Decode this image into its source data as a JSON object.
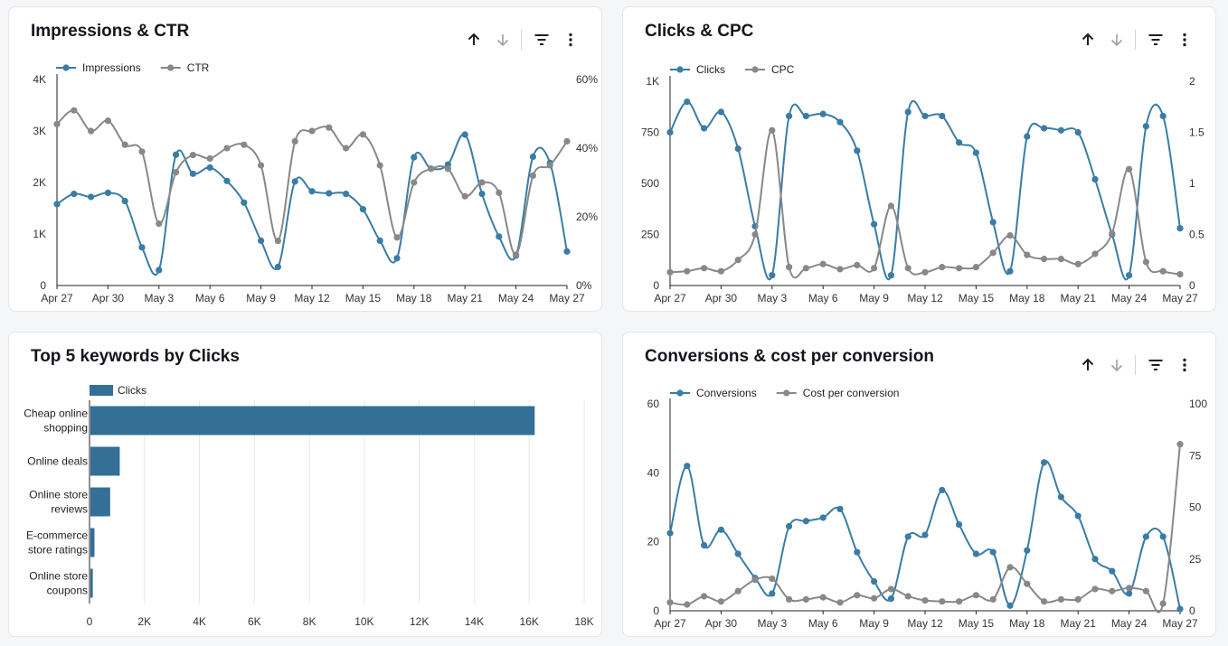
{
  "colors": {
    "blue": "#3a7ca5",
    "gray": "#888888",
    "bar": "#336f96",
    "grid": "#e6e8eb",
    "axis": "#222222"
  },
  "toolbar": {
    "sort_up_icon": "arrow-up-icon",
    "sort_down_icon": "arrow-down-icon",
    "filter_icon": "filter-icon",
    "more_icon": "more-vert-icon"
  },
  "chart_data": [
    {
      "id": "impressions",
      "type": "line",
      "title": "Impressions & CTR",
      "x": [
        "Apr 27",
        "Apr 28",
        "Apr 29",
        "Apr 30",
        "May 1",
        "May 2",
        "May 3",
        "May 4",
        "May 5",
        "May 6",
        "May 7",
        "May 8",
        "May 9",
        "May 10",
        "May 11",
        "May 12",
        "May 13",
        "May 14",
        "May 15",
        "May 16",
        "May 17",
        "May 18",
        "May 19",
        "May 20",
        "May 21",
        "May 22",
        "May 23",
        "May 24",
        "May 25",
        "May 26",
        "May 27"
      ],
      "xticks": [
        "Apr 27",
        "Apr 30",
        "May 3",
        "May 6",
        "May 9",
        "May 12",
        "May 15",
        "May 18",
        "May 21",
        "May 24",
        "May 27"
      ],
      "left_axis": {
        "min": 0,
        "max": 4000,
        "ticks": [
          0,
          1000,
          2000,
          3000,
          4000
        ],
        "labels": [
          "0",
          "1K",
          "2K",
          "3K",
          "4K"
        ]
      },
      "right_axis": {
        "min": 0,
        "max": 60,
        "ticks": [
          0,
          20,
          40,
          60
        ],
        "labels": [
          "0%",
          "20%",
          "40%",
          "60%"
        ]
      },
      "series": [
        {
          "name": "Impressions",
          "axis": "left",
          "color": "#3a7ca5",
          "values": [
            1580,
            1780,
            1720,
            1800,
            1640,
            740,
            300,
            2540,
            2170,
            2290,
            2030,
            1610,
            870,
            360,
            2020,
            1830,
            1790,
            1780,
            1480,
            870,
            530,
            2490,
            2270,
            2350,
            2930,
            1780,
            950,
            580,
            2500,
            2380,
            660
          ]
        },
        {
          "name": "CTR",
          "axis": "right",
          "color": "#888888",
          "values": [
            47,
            51,
            45,
            48,
            41,
            39,
            18,
            33,
            38,
            37,
            40,
            41,
            35,
            13,
            42,
            45,
            46,
            40,
            44,
            35,
            14,
            30,
            34,
            34,
            26,
            30,
            27,
            9,
            32,
            35,
            42
          ]
        }
      ]
    },
    {
      "id": "clicks",
      "type": "line",
      "title": "Clicks & CPC",
      "x": [
        "Apr 27",
        "Apr 28",
        "Apr 29",
        "Apr 30",
        "May 1",
        "May 2",
        "May 3",
        "May 4",
        "May 5",
        "May 6",
        "May 7",
        "May 8",
        "May 9",
        "May 10",
        "May 11",
        "May 12",
        "May 13",
        "May 14",
        "May 15",
        "May 16",
        "May 17",
        "May 18",
        "May 19",
        "May 20",
        "May 21",
        "May 22",
        "May 23",
        "May 24",
        "May 25",
        "May 26",
        "May 27"
      ],
      "xticks": [
        "Apr 27",
        "Apr 30",
        "May 3",
        "May 6",
        "May 9",
        "May 12",
        "May 15",
        "May 18",
        "May 21",
        "May 24",
        "May 27"
      ],
      "left_axis": {
        "min": 0,
        "max": 1000,
        "ticks": [
          0,
          250,
          500,
          750,
          1000
        ],
        "labels": [
          "0",
          "250",
          "500",
          "750",
          "1K"
        ]
      },
      "right_axis": {
        "min": 0,
        "max": 2,
        "ticks": [
          0,
          0.5,
          1,
          1.5,
          2
        ],
        "labels": [
          "0",
          "0.5",
          "1",
          "1.5",
          "2"
        ]
      },
      "series": [
        {
          "name": "Clicks",
          "axis": "left",
          "color": "#3a7ca5",
          "values": [
            750,
            900,
            770,
            850,
            670,
            290,
            50,
            830,
            830,
            840,
            800,
            660,
            300,
            50,
            850,
            830,
            830,
            700,
            650,
            310,
            70,
            730,
            770,
            760,
            750,
            520,
            250,
            50,
            780,
            830,
            280
          ]
        },
        {
          "name": "CPC",
          "axis": "right",
          "color": "#888888",
          "values": [
            0.13,
            0.14,
            0.17,
            0.14,
            0.25,
            0.5,
            1.52,
            0.18,
            0.17,
            0.21,
            0.16,
            0.2,
            0.17,
            0.78,
            0.17,
            0.13,
            0.18,
            0.17,
            0.18,
            0.32,
            0.49,
            0.3,
            0.26,
            0.26,
            0.21,
            0.31,
            0.51,
            1.14,
            0.23,
            0.14,
            0.11
          ]
        }
      ]
    },
    {
      "id": "keywords",
      "type": "bar",
      "orientation": "horizontal",
      "title": "Top 5 keywords by Clicks",
      "categories": [
        [
          "Cheap online",
          "shopping"
        ],
        [
          "Online deals"
        ],
        [
          "Online store",
          "reviews"
        ],
        [
          "E-commerce",
          "store ratings"
        ],
        [
          "Online store",
          "coupons"
        ]
      ],
      "series": [
        {
          "name": "Clicks",
          "values": [
            16200,
            1100,
            750,
            180,
            120
          ]
        }
      ],
      "x_axis": {
        "min": 0,
        "max": 18000,
        "ticks": [
          0,
          2000,
          4000,
          6000,
          8000,
          10000,
          12000,
          14000,
          16000,
          18000
        ],
        "labels": [
          "0",
          "2K",
          "4K",
          "6K",
          "8K",
          "10K",
          "12K",
          "14K",
          "16K",
          "18K"
        ]
      }
    },
    {
      "id": "conversions",
      "type": "line",
      "title": "Conversions & cost per conversion",
      "x": [
        "Apr 27",
        "Apr 28",
        "Apr 29",
        "Apr 30",
        "May 1",
        "May 2",
        "May 3",
        "May 4",
        "May 5",
        "May 6",
        "May 7",
        "May 8",
        "May 9",
        "May 10",
        "May 11",
        "May 12",
        "May 13",
        "May 14",
        "May 15",
        "May 16",
        "May 17",
        "May 18",
        "May 19",
        "May 20",
        "May 21",
        "May 22",
        "May 23",
        "May 24",
        "May 25",
        "May 26",
        "May 27"
      ],
      "xticks": [
        "Apr 27",
        "Apr 30",
        "May 3",
        "May 6",
        "May 9",
        "May 12",
        "May 15",
        "May 18",
        "May 21",
        "May 24",
        "May 27"
      ],
      "left_axis": {
        "min": 0,
        "max": 60,
        "ticks": [
          0,
          20,
          40,
          60
        ],
        "labels": [
          "0",
          "20",
          "40",
          "60"
        ]
      },
      "right_axis": {
        "min": 0,
        "max": 100,
        "ticks": [
          0,
          25,
          50,
          75,
          100
        ],
        "labels": [
          "0",
          "25",
          "50",
          "75",
          "100"
        ]
      },
      "series": [
        {
          "name": "Conversions",
          "axis": "left",
          "color": "#3a7ca5",
          "values": [
            22.5,
            42,
            19,
            23.5,
            16.5,
            9.5,
            5,
            24.5,
            26,
            27,
            29.5,
            17,
            8.5,
            3.5,
            21.5,
            22,
            35,
            25,
            16.5,
            17,
            1.5,
            17.5,
            43,
            33,
            27.5,
            15,
            11.5,
            5,
            21.5,
            21.5,
            0.5
          ]
        },
        {
          "name": "Cost per conversion",
          "axis": "right",
          "color": "#888888",
          "values": [
            4,
            3,
            7,
            4.5,
            9.5,
            15,
            15.5,
            5.5,
            5.5,
            6.5,
            4,
            7.5,
            6,
            10.5,
            7,
            5,
            4.5,
            4.5,
            7.5,
            5.5,
            21,
            13,
            4.5,
            5.5,
            5.5,
            10.5,
            9.5,
            11,
            9.5,
            3.5,
            80.5
          ]
        }
      ]
    }
  ]
}
